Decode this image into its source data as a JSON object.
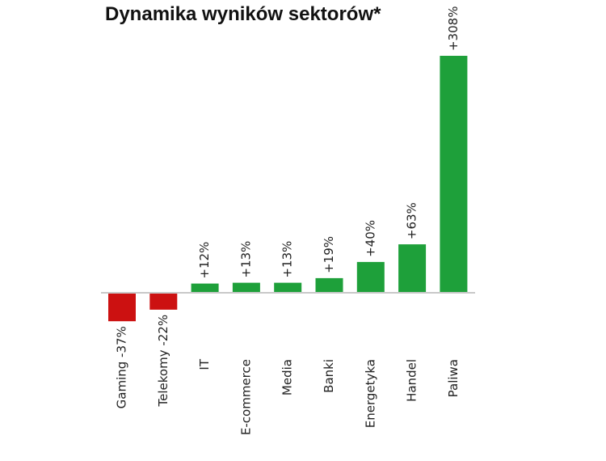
{
  "chart_data": {
    "type": "bar",
    "title": "Dynamika wyników sektorów*",
    "xlabel": "",
    "ylabel": "",
    "ylim": [
      -37,
      308
    ],
    "grid": false,
    "legend": "none",
    "unit": "%",
    "categories": [
      "Gaming",
      "Telekomy",
      "IT",
      "E-commerce",
      "Media",
      "Banki",
      "Energetyka",
      "Handel",
      "Paliwa"
    ],
    "values": [
      -37,
      -22,
      12,
      13,
      13,
      19,
      40,
      63,
      308
    ],
    "category_labels": [
      "Gaming -37%",
      "Telekomy -22%",
      "IT",
      "E-commerce",
      "Media",
      "Banki",
      "Energetyka",
      "Handel",
      "Paliwa"
    ],
    "value_labels": [
      "",
      "",
      "+12%",
      "+13%",
      "+13%",
      "+19%",
      "+40%",
      "+63%",
      "+308%"
    ],
    "colors": {
      "negative": "#cc1111",
      "positive": "#1ea03a",
      "axis": "#c8c8c8"
    }
  }
}
